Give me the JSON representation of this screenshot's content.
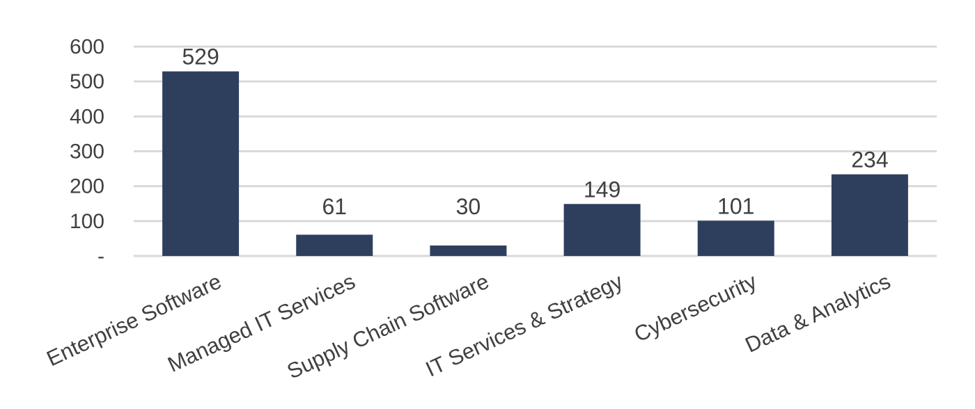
{
  "chart_data": {
    "type": "bar",
    "categories": [
      "Enterprise Software",
      "Managed IT Services",
      "Supply Chain Software",
      "IT Services & Strategy",
      "Cybersecurity",
      "Data & Analytics"
    ],
    "values": [
      529,
      61,
      30,
      149,
      101,
      234
    ],
    "data_labels": [
      "529",
      "61",
      "30",
      "149",
      "101",
      "234"
    ],
    "y_ticks": [
      0,
      100,
      200,
      300,
      400,
      500,
      600
    ],
    "y_tick_labels": [
      "-",
      "100",
      "200",
      "300",
      "400",
      "500",
      "600"
    ],
    "ylim": [
      0,
      600
    ],
    "grid": true,
    "legend": "none",
    "title": "",
    "xlabel": "",
    "ylabel": "",
    "colors": {
      "bar": "#2e3f5e",
      "grid": "#d9d9d9",
      "text": "#404040"
    }
  }
}
